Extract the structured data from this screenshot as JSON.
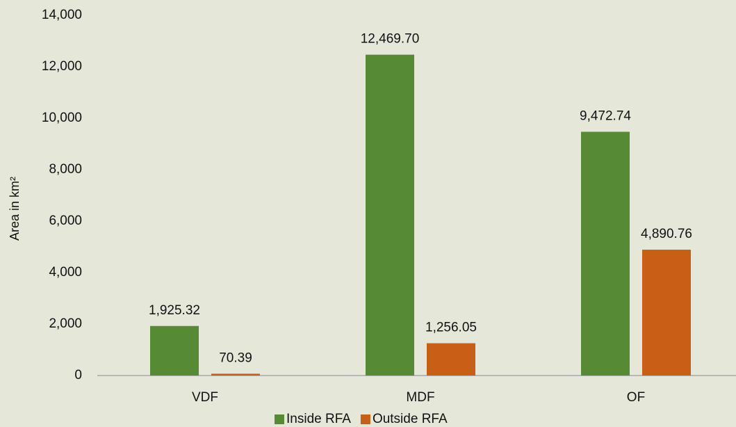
{
  "chart_data": {
    "type": "bar",
    "y_label": "Area in km²",
    "categories": [
      "VDF",
      "MDF",
      "OF"
    ],
    "series": [
      {
        "name": "Inside RFA",
        "color": "#568a35",
        "values": [
          1925.32,
          12469.7,
          9472.74
        ],
        "value_labels": [
          "1,925.32",
          "12,469.70",
          "9,472.74"
        ]
      },
      {
        "name": "Outside RFA",
        "color": "#c85f16",
        "values": [
          70.39,
          1256.05,
          4890.76
        ],
        "value_labels": [
          "70.39",
          "1,256.05",
          "4,890.76"
        ]
      }
    ],
    "ylim": [
      0,
      14000
    ],
    "yticks": [
      0,
      {
        "value": 2000,
        "label": "2,000"
      },
      {
        "value": 4000,
        "label": "4,000"
      },
      {
        "value": 6000,
        "label": "6,000"
      },
      {
        "value": 8000,
        "label": "8,000"
      },
      {
        "value": 10000,
        "label": "10,000"
      },
      {
        "value": 12000,
        "label": "12,000"
      },
      {
        "value": 14000,
        "label": "14,000"
      }
    ],
    "grid": false,
    "legend": "bottom"
  }
}
